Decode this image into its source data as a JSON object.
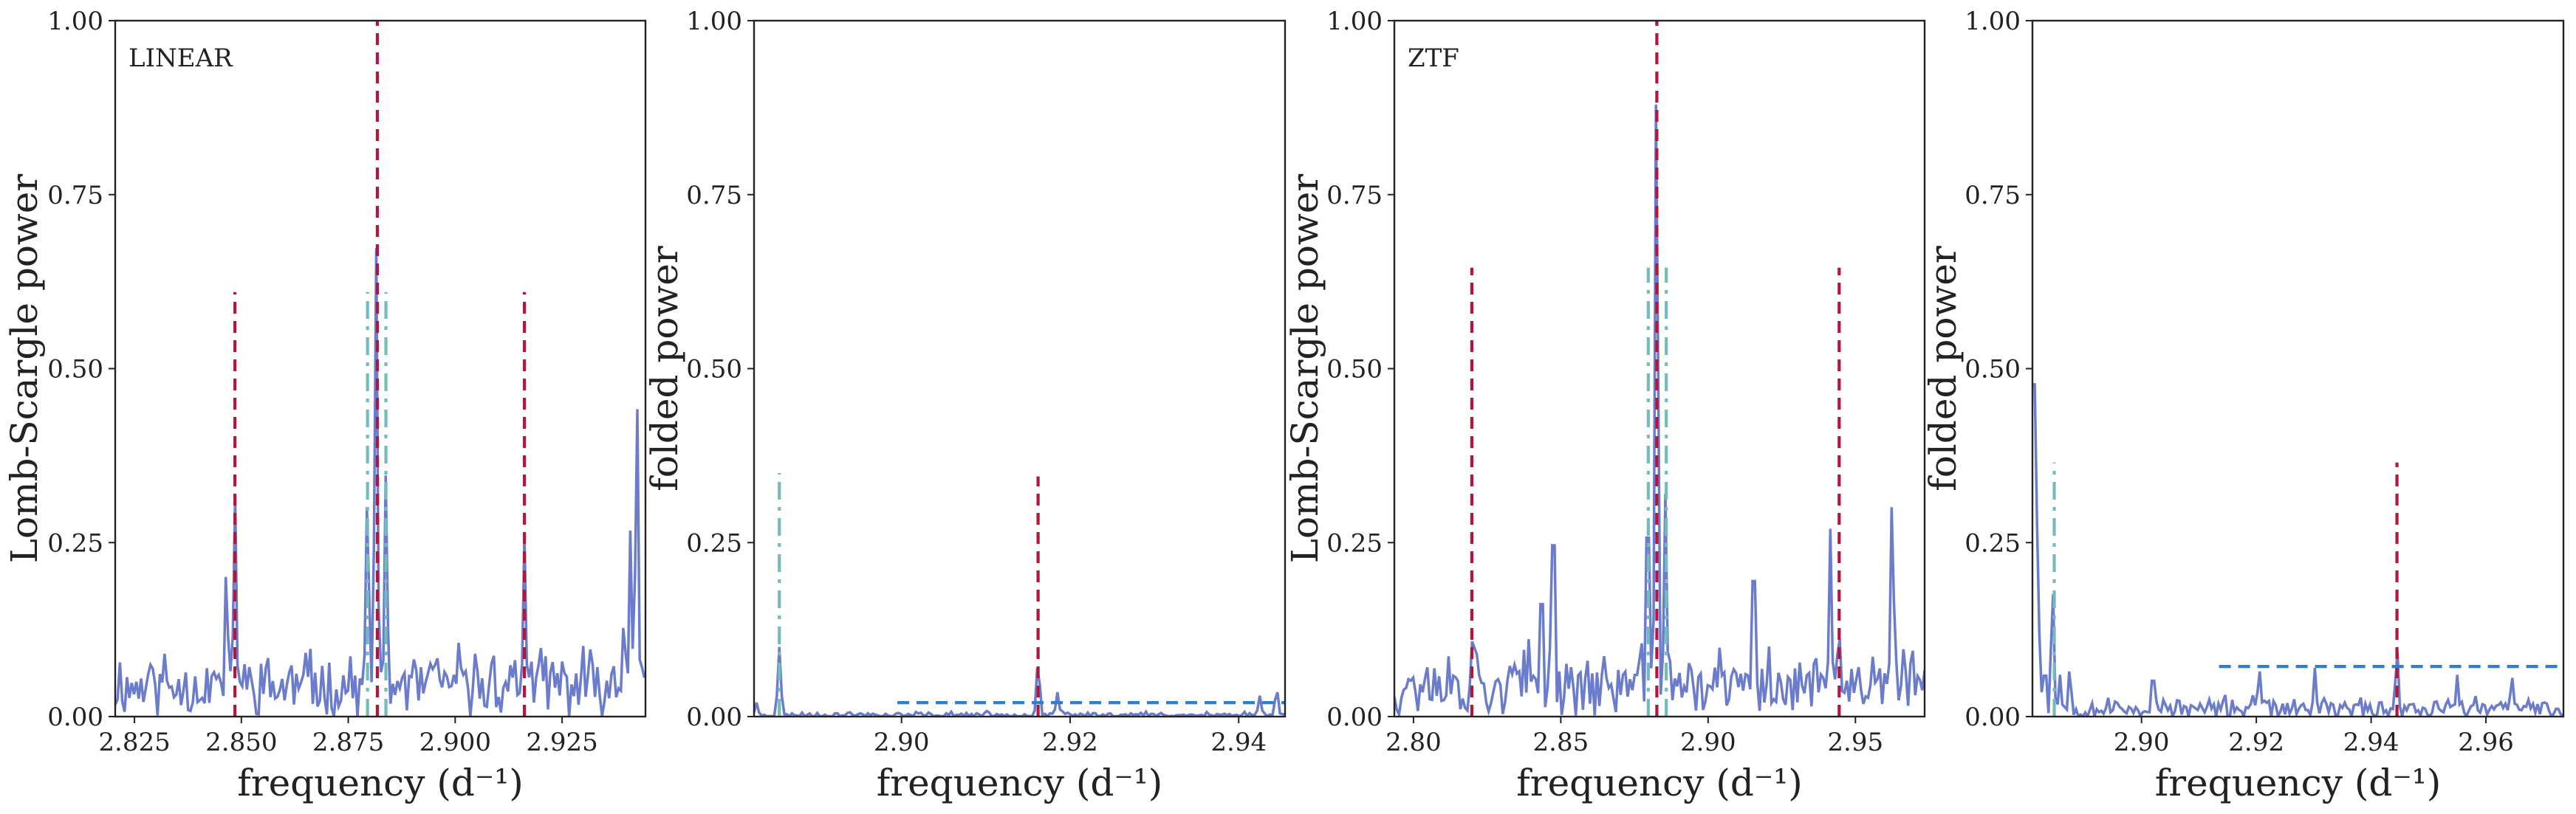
{
  "colors": {
    "signal": "#6a7ccb",
    "marker_red": "#b3163a",
    "marker_teal": "#72bcbc",
    "threshold_blue": "#2e80cc"
  },
  "chart_data": [
    {
      "type": "line",
      "panel_label": "LINEAR",
      "xlabel": "frequency (d⁻¹)",
      "ylabel": "Lomb-Scargle power",
      "xlim": [
        2.8205,
        2.9445
      ],
      "ylim": [
        0,
        1
      ],
      "xticks": [
        {
          "value": 2.825,
          "label": "2.825"
        },
        {
          "value": 2.85,
          "label": "2.850"
        },
        {
          "value": 2.875,
          "label": "2.875"
        },
        {
          "value": 2.9,
          "label": "2.900"
        },
        {
          "value": 2.925,
          "label": "2.925"
        }
      ],
      "yticks": [
        {
          "value": 0,
          "label": "0.00"
        },
        {
          "value": 0.25,
          "label": "0.25"
        },
        {
          "value": 0.5,
          "label": "0.50"
        },
        {
          "value": 0.75,
          "label": "0.75"
        },
        {
          "value": 1,
          "label": "1.00"
        }
      ],
      "series": [
        {
          "kind": "noise",
          "base": 0.035,
          "noise": 0.045,
          "seed": 11,
          "step": 0.00055,
          "peaks": [
            [
              2.8465,
              0.22
            ],
            [
              2.8485,
              0.32
            ],
            [
              2.8795,
              0.33
            ],
            [
              2.8815,
              0.68
            ],
            [
              2.8838,
              0.35
            ],
            [
              2.9162,
              0.26
            ],
            [
              2.9395,
              0.15
            ],
            [
              2.941,
              0.27
            ],
            [
              2.9425,
              0.46
            ]
          ]
        }
      ],
      "markers": [
        {
          "color": "marker_teal",
          "style": "dashdot",
          "x": 2.8795,
          "y0": 0,
          "y1": 0.61
        },
        {
          "color": "marker_teal",
          "style": "dashdot",
          "x": 2.8838,
          "y0": 0,
          "y1": 0.61
        },
        {
          "color": "marker_red",
          "style": "dashed",
          "x": 2.8485,
          "y0": 0,
          "y1": 0.61
        },
        {
          "color": "marker_red",
          "style": "dashed",
          "x": 2.8818,
          "y0": 0,
          "y1": 1.0
        },
        {
          "color": "marker_red",
          "style": "dashed",
          "x": 2.9162,
          "y0": 0,
          "y1": 0.61
        }
      ]
    },
    {
      "type": "line",
      "panel_label": "",
      "xlabel": "frequency (d⁻¹)",
      "ylabel": "folded power",
      "xlim": [
        2.8825,
        2.9455
      ],
      "ylim": [
        0,
        1
      ],
      "xticks": [
        {
          "value": 2.9,
          "label": "2.90"
        },
        {
          "value": 2.92,
          "label": "2.92"
        },
        {
          "value": 2.94,
          "label": "2.94"
        }
      ],
      "yticks": [
        {
          "value": 0,
          "label": "0.00"
        },
        {
          "value": 0.25,
          "label": "0.25"
        },
        {
          "value": 0.5,
          "label": "0.50"
        },
        {
          "value": 0.75,
          "label": "0.75"
        },
        {
          "value": 1,
          "label": "1.00"
        }
      ],
      "series": [
        {
          "kind": "noise",
          "base": 0.0015,
          "noise": 0.004,
          "seed": 23,
          "step": 0.0003,
          "peaks": [
            [
              2.8828,
              0.02
            ],
            [
              2.8855,
              0.1
            ],
            [
              2.9162,
              0.08
            ],
            [
              2.9185,
              0.035
            ],
            [
              2.9425,
              0.03
            ],
            [
              2.9445,
              0.04
            ]
          ]
        }
      ],
      "markers": [
        {
          "color": "marker_teal",
          "style": "dashdot",
          "x": 2.8855,
          "y0": 0,
          "y1": 0.35
        },
        {
          "color": "marker_red",
          "style": "dashed",
          "x": 2.9162,
          "y0": 0,
          "y1": 0.345
        },
        {
          "color": "threshold_blue",
          "style": "dashed",
          "horizontal": true,
          "y": 0.02,
          "x0": 2.8995,
          "x1": 2.9455
        }
      ]
    },
    {
      "type": "line",
      "panel_label": "ZTF",
      "xlabel": "frequency (d⁻¹)",
      "ylabel": "Lomb-Scargle power",
      "xlim": [
        2.7935,
        2.9735
      ],
      "ylim": [
        0,
        1
      ],
      "xticks": [
        {
          "value": 2.8,
          "label": "2.80"
        },
        {
          "value": 2.85,
          "label": "2.85"
        },
        {
          "value": 2.9,
          "label": "2.90"
        },
        {
          "value": 2.95,
          "label": "2.95"
        }
      ],
      "yticks": [
        {
          "value": 0,
          "label": "0.00"
        },
        {
          "value": 0.25,
          "label": "0.25"
        },
        {
          "value": 0.5,
          "label": "0.50"
        },
        {
          "value": 0.75,
          "label": "0.75"
        },
        {
          "value": 1,
          "label": "1.00"
        }
      ],
      "series": [
        {
          "kind": "noise",
          "base": 0.035,
          "noise": 0.045,
          "seed": 37,
          "step": 0.0008,
          "peaks": [
            [
              2.8198,
              0.11
            ],
            [
              2.8435,
              0.22
            ],
            [
              2.8475,
              0.335
            ],
            [
              2.8795,
              0.35
            ],
            [
              2.8825,
              0.95
            ],
            [
              2.8855,
              0.32
            ],
            [
              2.9155,
              0.265
            ],
            [
              2.9415,
              0.27
            ],
            [
              2.9445,
              0.12
            ],
            [
              2.9625,
              0.325
            ]
          ]
        }
      ],
      "markers": [
        {
          "color": "marker_teal",
          "style": "dashdot",
          "x": 2.8797,
          "y0": 0,
          "y1": 0.645
        },
        {
          "color": "marker_teal",
          "style": "dashdot",
          "x": 2.8858,
          "y0": 0,
          "y1": 0.645
        },
        {
          "color": "marker_red",
          "style": "dashed",
          "x": 2.8198,
          "y0": 0,
          "y1": 0.645
        },
        {
          "color": "marker_red",
          "style": "dashed",
          "x": 2.8826,
          "y0": 0,
          "y1": 1.0
        },
        {
          "color": "marker_red",
          "style": "dashed",
          "x": 2.9445,
          "y0": 0,
          "y1": 0.645
        }
      ]
    },
    {
      "type": "line",
      "panel_label": "",
      "xlabel": "frequency (d⁻¹)",
      "ylabel": "folded power",
      "xlim": [
        2.881,
        2.9735
      ],
      "ylim": [
        0,
        1
      ],
      "xticks": [
        {
          "value": 2.9,
          "label": "2.90"
        },
        {
          "value": 2.92,
          "label": "2.92"
        },
        {
          "value": 2.94,
          "label": "2.94"
        },
        {
          "value": 2.96,
          "label": "2.96"
        }
      ],
      "yticks": [
        {
          "value": 0,
          "label": "0.00"
        },
        {
          "value": 0.25,
          "label": "0.25"
        },
        {
          "value": 0.5,
          "label": "0.50"
        },
        {
          "value": 0.75,
          "label": "0.75"
        },
        {
          "value": 1,
          "label": "1.00"
        }
      ],
      "series": [
        {
          "kind": "noise",
          "base": 0.008,
          "noise": 0.014,
          "seed": 53,
          "step": 0.0004,
          "peaks": [
            [
              2.8812,
              0.65
            ],
            [
              2.8817,
              0.3
            ],
            [
              2.8822,
              0.12
            ],
            [
              2.8832,
              0.08
            ],
            [
              2.8845,
              0.19
            ],
            [
              2.8858,
              0.06
            ],
            [
              2.8875,
              0.07
            ],
            [
              2.902,
              0.07
            ],
            [
              2.9205,
              0.07
            ],
            [
              2.9302,
              0.07
            ],
            [
              2.9445,
              0.1
            ],
            [
              2.955,
              0.06
            ],
            [
              2.9645,
              0.06
            ]
          ]
        }
      ],
      "markers": [
        {
          "color": "marker_teal",
          "style": "dashdot",
          "x": 2.8848,
          "y0": 0,
          "y1": 0.365
        },
        {
          "color": "marker_red",
          "style": "dashed",
          "x": 2.9445,
          "y0": 0,
          "y1": 0.365
        },
        {
          "color": "threshold_blue",
          "style": "dashed",
          "horizontal": true,
          "y": 0.072,
          "x0": 2.9135,
          "x1": 2.9735
        }
      ]
    }
  ]
}
